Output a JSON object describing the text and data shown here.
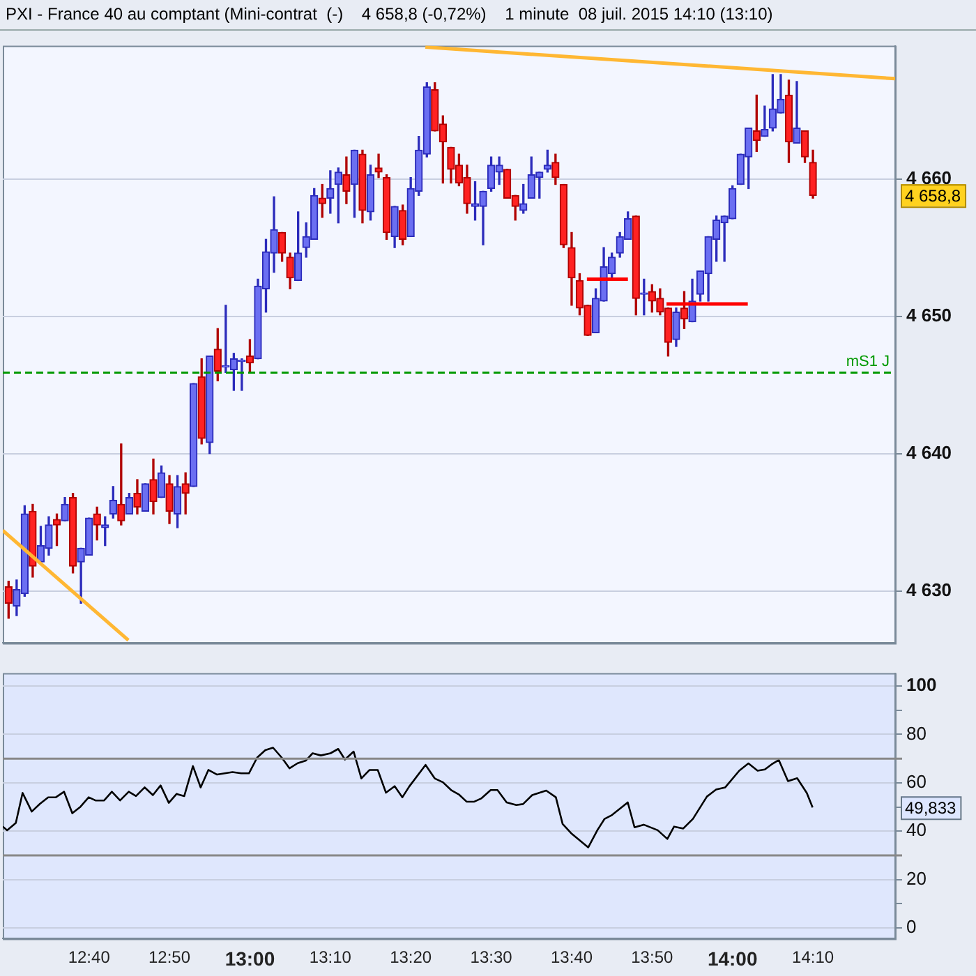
{
  "chart_data": [
    {
      "type": "candlestick",
      "title": "PXI - France 40 au comptant (Mini-contrat  (-)    4 658,8 (-0,72%)    1 minute  08 juil. 2015 14:10 (13:10)",
      "x": [
        12.5,
        12.5167,
        12.5333,
        12.55,
        12.5667,
        12.5833,
        12.6,
        12.6167,
        12.6333,
        12.65,
        12.6667,
        12.6833,
        12.7,
        12.7167,
        12.7333,
        12.75,
        12.7667,
        12.7833,
        12.8,
        12.8167,
        12.8333,
        12.85,
        12.8667,
        12.8833,
        12.9,
        12.9167,
        12.9333,
        12.95,
        12.9667,
        12.9833,
        13,
        13.0167,
        13.0333,
        13.05,
        13.0667,
        13.0833,
        13.1,
        13.1167,
        13.1333,
        13.15,
        13.1667,
        13.1833,
        13.2,
        13.2167,
        13.2333,
        13.25,
        13.2667,
        13.2833,
        13.3,
        13.3167,
        13.3333,
        13.35,
        13.3667,
        13.3833,
        13.4,
        13.4167,
        13.4333,
        13.45,
        13.4667,
        13.4833,
        13.5,
        13.5167,
        13.5333,
        13.55,
        13.5667,
        13.5833,
        13.6,
        13.6167,
        13.6333,
        13.65,
        13.6667,
        13.6833,
        13.7,
        13.7167,
        13.7333,
        13.75,
        13.7667,
        13.7833,
        13.8,
        13.8167,
        13.8333,
        13.85,
        13.8667,
        13.8833,
        13.9,
        13.9167,
        13.9333,
        13.95,
        13.9667,
        13.9833,
        14,
        14.0167,
        14.0333,
        14.05,
        14.0667,
        14.0833,
        14.1,
        14.1167,
        14.1333,
        14.15,
        14.1667
      ],
      "ohlc": [
        [
          4630.3,
          4630.7,
          4628.0,
          4629.1
        ],
        [
          4628.9,
          4630.8,
          4628.2,
          4630.1
        ],
        [
          4629.8,
          4636.2,
          4629.6,
          4635.6
        ],
        [
          4635.8,
          4636.3,
          4631.0,
          4631.8
        ],
        [
          4632.1,
          4634.7,
          4632.1,
          4633.3
        ],
        [
          4633.1,
          4635.4,
          4632.6,
          4634.8
        ],
        [
          4635.2,
          4635.6,
          4633.3,
          4634.8
        ],
        [
          4635.1,
          4636.8,
          4635.1,
          4636.3
        ],
        [
          4636.8,
          4637.1,
          4631.3,
          4631.8
        ],
        [
          4632.1,
          4633.1,
          4629.1,
          4633.1
        ],
        [
          4632.6,
          4635.3,
          4632.6,
          4635.3
        ],
        [
          4635.6,
          4636.1,
          4633.7,
          4634.8
        ],
        [
          4634.6,
          4635.4,
          4633.3,
          4634.8
        ],
        [
          4635.6,
          4637.6,
          4635.3,
          4636.6
        ],
        [
          4636.3,
          4640.7,
          4634.8,
          4635.1
        ],
        [
          4635.6,
          4637.1,
          4635.6,
          4636.8
        ],
        [
          4637.1,
          4638.1,
          4635.6,
          4636.1
        ],
        [
          4635.8,
          4637.8,
          4635.8,
          4637.8
        ],
        [
          4638.1,
          4639.6,
          4635.6,
          4636.5
        ],
        [
          4636.8,
          4639.1,
          4636.8,
          4638.6
        ],
        [
          4637.8,
          4638.4,
          4634.9,
          4635.8
        ],
        [
          4635.6,
          4638.4,
          4634.6,
          4637.6
        ],
        [
          4637.8,
          4638.6,
          4635.6,
          4637.1
        ],
        [
          4637.6,
          4645.1,
          4637.6,
          4645.1
        ],
        [
          4645.6,
          4646.9,
          4640.7,
          4641.1
        ],
        [
          4640.8,
          4647.1,
          4640.0,
          4647.1
        ],
        [
          4647.6,
          4649.1,
          4645.3,
          4646.0
        ],
        [
          4646.3,
          4650.8,
          4645.9,
          4646.4
        ],
        [
          4646.1,
          4647.3,
          4644.6,
          4646.9
        ],
        [
          4646.7,
          4646.9,
          4644.6,
          4646.8
        ],
        [
          4647.1,
          4648.3,
          4646.0,
          4646.6
        ],
        [
          4646.9,
          4652.7,
          4646.9,
          4652.2
        ],
        [
          4652.0,
          4655.6,
          4650.3,
          4654.7
        ],
        [
          4654.6,
          4658.7,
          4653.2,
          4656.3
        ],
        [
          4656.1,
          4656.1,
          4654.0,
          4654.6
        ],
        [
          4654.3,
          4654.6,
          4652.0,
          4652.8
        ],
        [
          4652.6,
          4657.6,
          4652.6,
          4654.6
        ],
        [
          4655.0,
          4656.8,
          4654.3,
          4655.8
        ],
        [
          4655.6,
          4659.3,
          4655.6,
          4658.8
        ],
        [
          4658.6,
          4659.6,
          4657.2,
          4658.2
        ],
        [
          4658.6,
          4660.6,
          4657.5,
          4659.3
        ],
        [
          4659.6,
          4660.8,
          4656.8,
          4660.5
        ],
        [
          4660.3,
          4661.6,
          4658.2,
          4659.1
        ],
        [
          4659.6,
          4662.1,
          4657.2,
          4662.1
        ],
        [
          4661.8,
          4662.1,
          4656.8,
          4657.7
        ],
        [
          4657.6,
          4661.0,
          4657.0,
          4660.3
        ],
        [
          4660.8,
          4661.8,
          4660.1,
          4660.5
        ],
        [
          4660.1,
          4660.3,
          4655.6,
          4656.1
        ],
        [
          4655.8,
          4658.0,
          4655.0,
          4658.0
        ],
        [
          4657.7,
          4658.1,
          4655.2,
          4655.6
        ],
        [
          4655.8,
          4660.1,
          4655.8,
          4659.3
        ],
        [
          4659.1,
          4663.1,
          4658.8,
          4662.1
        ],
        [
          4661.8,
          4667.0,
          4661.6,
          4666.7
        ],
        [
          4666.5,
          4667.0,
          4663.5,
          4663.5
        ],
        [
          4664.0,
          4664.6,
          4659.7,
          4662.7
        ],
        [
          4662.3,
          4662.3,
          4659.7,
          4660.7
        ],
        [
          4661.0,
          4661.8,
          4659.5,
          4659.7
        ],
        [
          4660.1,
          4661.0,
          4657.5,
          4658.2
        ],
        [
          4658.0,
          4659.8,
          4657.0,
          4658.2
        ],
        [
          4658.0,
          4659.1,
          4655.2,
          4659.1
        ],
        [
          4659.3,
          4661.6,
          4659.1,
          4661.0
        ],
        [
          4660.5,
          4661.6,
          4659.6,
          4661.0
        ],
        [
          4660.7,
          4660.7,
          4658.6,
          4658.6
        ],
        [
          4658.8,
          4658.8,
          4657.0,
          4658.0
        ],
        [
          4657.7,
          4659.6,
          4657.5,
          4658.2
        ],
        [
          4658.6,
          4661.6,
          4658.6,
          4660.3
        ],
        [
          4660.1,
          4660.5,
          4658.6,
          4660.5
        ],
        [
          4660.7,
          4662.1,
          4660.5,
          4661.0
        ],
        [
          4661.2,
          4661.8,
          4659.6,
          4660.1
        ],
        [
          4659.6,
          4659.6,
          4655.0,
          4655.2
        ],
        [
          4655.0,
          4656.1,
          4650.8,
          4652.8
        ],
        [
          4652.6,
          4653.1,
          4650.1,
          4650.6
        ],
        [
          4650.8,
          4650.8,
          4648.6,
          4648.6
        ],
        [
          4648.8,
          4652.0,
          4648.8,
          4651.3
        ],
        [
          4651.1,
          4655.0,
          4651.1,
          4653.6
        ],
        [
          4653.1,
          4654.6,
          4652.8,
          4654.3
        ],
        [
          4654.6,
          4656.1,
          4654.3,
          4655.8
        ],
        [
          4655.6,
          4657.6,
          4655.6,
          4657.1
        ],
        [
          4657.3,
          4657.3,
          4650.1,
          4651.3
        ],
        [
          4651.6,
          4652.7,
          4650.1,
          4651.7
        ],
        [
          4651.8,
          4652.3,
          4650.3,
          4651.1
        ],
        [
          4651.3,
          4652.0,
          4650.1,
          4650.3
        ],
        [
          4650.6,
          4650.6,
          4647.1,
          4648.1
        ],
        [
          4648.3,
          4650.6,
          4647.8,
          4650.3
        ],
        [
          4650.6,
          4651.8,
          4649.1,
          4649.8
        ],
        [
          4649.6,
          4652.7,
          4649.6,
          4651.1
        ],
        [
          4651.6,
          4653.3,
          4651.1,
          4653.3
        ],
        [
          4653.1,
          4655.8,
          4651.1,
          4655.8
        ],
        [
          4655.6,
          4657.3,
          4654.0,
          4657.0
        ],
        [
          4656.8,
          4657.3,
          4654.0,
          4657.3
        ],
        [
          4657.1,
          4659.5,
          4657.1,
          4659.3
        ],
        [
          4659.6,
          4661.8,
          4659.6,
          4661.8
        ],
        [
          4661.6,
          4663.7,
          4659.3,
          4663.7
        ],
        [
          4663.5,
          4666.1,
          4662.0,
          4662.8
        ],
        [
          4663.1,
          4665.3,
          4663.1,
          4663.6
        ],
        [
          4663.7,
          4667.6,
          4663.5,
          4665.1
        ],
        [
          4664.8,
          4667.6,
          4664.8,
          4665.8
        ],
        [
          4666.1,
          4667.2,
          4661.2,
          4662.7
        ],
        [
          4662.6,
          4667.1,
          4662.6,
          4663.7
        ],
        [
          4663.5,
          4663.5,
          4661.2,
          4661.6
        ],
        [
          4661.2,
          4662.1,
          4658.6,
          4658.8
        ]
      ],
      "series": [
        {
          "type": "line",
          "color": "#ffb733",
          "x": [
            12.488,
            12.7483
          ],
          "values": [
            4634.4,
            4626.4
          ]
        },
        {
          "type": "line",
          "color": "#ffb733",
          "x": [
            13.3636,
            14.337
          ],
          "values": [
            4669.6,
            4667.3
          ]
        },
        {
          "type": "line",
          "color": "#ff0000",
          "x": [
            13.6983,
            13.7833
          ],
          "values": [
            4652.7,
            4652.7
          ]
        },
        {
          "type": "line",
          "color": "#ff0000",
          "x": [
            13.8633,
            14.0317
          ],
          "values": [
            4650.9,
            4650.9
          ]
        }
      ],
      "xlim": [
        12.488,
        14.337
      ],
      "ylim": [
        4626.2,
        4669.7
      ],
      "yticks": [
        {
          "value": 4630,
          "label": "4 630"
        },
        {
          "value": 4640,
          "label": "4 640"
        },
        {
          "value": 4650,
          "label": "4 650"
        },
        {
          "value": 4660,
          "label": "4 660"
        }
      ],
      "ref_lines": [
        {
          "axis": "y",
          "value": 4645.9,
          "label": "mS1 J",
          "color": "#009900",
          "line_style": "dashed"
        }
      ],
      "annotations": [
        "4 658,8"
      ],
      "grid": "y",
      "tick_labels": "y",
      "legend": false
    },
    {
      "type": "line",
      "series": [
        {
          "color": "#000000",
          "x": [
            12.488,
            12.497,
            12.515,
            12.529,
            12.548,
            12.565,
            12.582,
            12.598,
            12.615,
            12.632,
            12.649,
            12.666,
            12.68,
            12.698,
            12.714,
            12.731,
            12.749,
            12.764,
            12.782,
            12.799,
            12.815,
            12.832,
            12.848,
            12.864,
            12.882,
            12.898,
            12.914,
            12.932,
            12.964,
            12.982,
            12.998,
            13.015,
            13.032,
            13.048,
            13.066,
            13.082,
            13.099,
            13.116,
            13.13,
            13.147,
            13.167,
            13.183,
            13.197,
            13.215,
            13.231,
            13.248,
            13.265,
            13.282,
            13.3,
            13.316,
            13.33,
            13.364,
            13.383,
            13.4,
            13.417,
            13.433,
            13.449,
            13.465,
            13.48,
            13.499,
            13.513,
            13.532,
            13.552,
            13.566,
            13.585,
            13.614,
            13.634,
            13.648,
            13.667,
            13.701,
            13.72,
            13.735,
            13.749,
            13.783,
            13.797,
            13.816,
            13.845,
            13.865,
            13.879,
            13.898,
            13.918,
            13.947,
            13.966,
            13.985,
            14.014,
            14.033,
            14.052,
            14.067,
            14.081,
            14.096,
            14.115,
            14.134,
            14.154,
            14.166
          ],
          "values": [
            41.9,
            40.4,
            43.4,
            55.8,
            48.1,
            51.3,
            54.0,
            54.0,
            56.3,
            47.4,
            50.1,
            54.0,
            52.7,
            52.7,
            56.3,
            52.7,
            56.3,
            54.5,
            58.1,
            54.9,
            58.9,
            51.7,
            55.4,
            54.5,
            66.9,
            58.1,
            65.3,
            63.4,
            64.4,
            63.9,
            63.9,
            70.4,
            73.5,
            74.5,
            70.4,
            66.0,
            68.1,
            69.2,
            72.2,
            71.3,
            72.2,
            74.0,
            69.6,
            72.9,
            61.8,
            65.3,
            65.3,
            55.9,
            58.6,
            54.0,
            58.4,
            67.4,
            61.8,
            60.2,
            57.0,
            55.2,
            52.2,
            52.2,
            53.6,
            57.0,
            57.0,
            51.9,
            50.8,
            51.2,
            54.9,
            56.8,
            54.0,
            43.0,
            38.9,
            33.3,
            40.4,
            45.1,
            46.5,
            51.9,
            41.6,
            42.7,
            40.4,
            36.8,
            41.9,
            41.1,
            45.1,
            54.3,
            57.2,
            58.1,
            65.0,
            68.0,
            65.0,
            65.5,
            67.6,
            69.4,
            60.7,
            61.9,
            55.8,
            49.8
          ]
        }
      ],
      "xlim": [
        12.488,
        14.337
      ],
      "ylim": [
        -4.4,
        105.3
      ],
      "xticks": [
        {
          "value": 12.6667,
          "label": "12:40"
        },
        {
          "value": 12.8333,
          "label": "12:50"
        },
        {
          "value": 13,
          "label": "13:00"
        },
        {
          "value": 13.1667,
          "label": "13:10"
        },
        {
          "value": 13.3333,
          "label": "13:20"
        },
        {
          "value": 13.5,
          "label": "13:30"
        },
        {
          "value": 13.6667,
          "label": "13:40"
        },
        {
          "value": 13.8333,
          "label": "13:50"
        },
        {
          "value": 14,
          "label": "14:00"
        },
        {
          "value": 14.1667,
          "label": "14:10"
        }
      ],
      "yticks": [
        0,
        {
          "value": 10,
          "label": null
        },
        20,
        40,
        {
          "value": 50,
          "label": null
        },
        60,
        80,
        {
          "value": 90,
          "label": null
        },
        100
      ],
      "ref_lines": [
        {
          "axis": "y",
          "value": 70,
          "color": "#888888"
        },
        {
          "axis": "y",
          "value": 30,
          "color": "#888888"
        }
      ],
      "annotations": [
        "49,833"
      ],
      "grid": "y",
      "legend": false,
      "marker": "none",
      "line_style": "solid"
    }
  ]
}
